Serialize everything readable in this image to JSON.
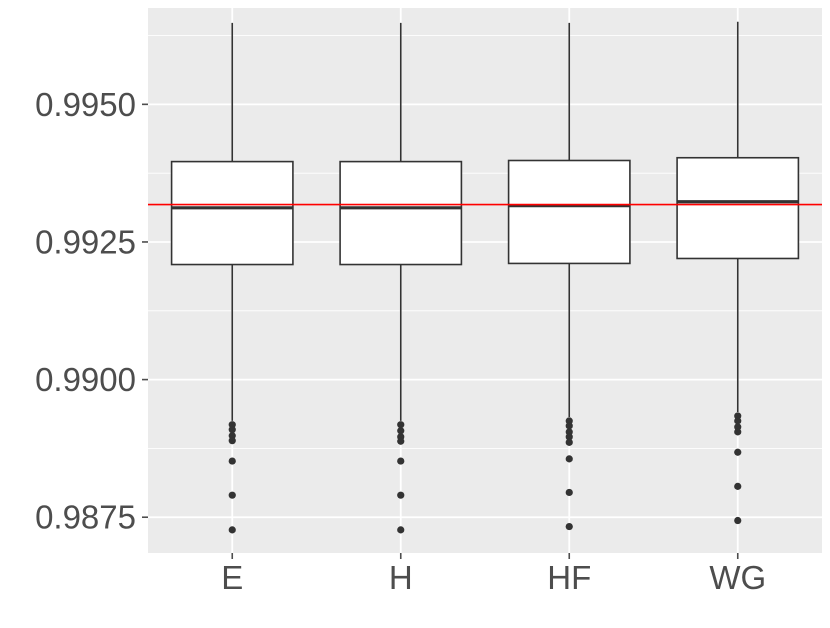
{
  "chart_data": {
    "type": "box",
    "title": "",
    "xlabel": "",
    "ylabel": "",
    "ylim": [
      0.98685,
      0.99675
    ],
    "yticks": [
      0.9875,
      0.99,
      0.9925,
      0.995
    ],
    "ytick_labels": [
      "0.9875",
      "0.9900",
      "0.9925",
      "0.9950"
    ],
    "categories": [
      "E",
      "H",
      "HF",
      "WG"
    ],
    "boxes": [
      {
        "category": "E",
        "whisker_low": 0.98925,
        "q1": 0.99209,
        "median": 0.99312,
        "q3": 0.99396,
        "whisker_high": 0.99648,
        "outliers": [
          0.98918,
          0.98909,
          0.98898,
          0.98889,
          0.98852,
          0.9879,
          0.98727
        ]
      },
      {
        "category": "H",
        "whisker_low": 0.98925,
        "q1": 0.99209,
        "median": 0.99312,
        "q3": 0.99396,
        "whisker_high": 0.99648,
        "outliers": [
          0.98918,
          0.98907,
          0.98896,
          0.98888,
          0.98852,
          0.9879,
          0.98727
        ]
      },
      {
        "category": "HF",
        "whisker_low": 0.98932,
        "q1": 0.99211,
        "median": 0.99316,
        "q3": 0.99398,
        "whisker_high": 0.99648,
        "outliers": [
          0.98925,
          0.98916,
          0.98905,
          0.98896,
          0.98886,
          0.98856,
          0.98795,
          0.98733
        ]
      },
      {
        "category": "WG",
        "whisker_low": 0.98941,
        "q1": 0.9922,
        "median": 0.99323,
        "q3": 0.99403,
        "whisker_high": 0.9965,
        "outliers": [
          0.98934,
          0.98925,
          0.98914,
          0.98905,
          0.98868,
          0.98806,
          0.98744
        ]
      }
    ],
    "reference_line": {
      "y": 0.99318,
      "color": "#ff0000"
    },
    "grid": true,
    "legend": "none",
    "colors": {
      "panel_background": "#ebebeb",
      "grid_line": "#ffffff",
      "box_fill": "#ffffff",
      "box_stroke": "#333333",
      "outlier": "#333333",
      "tick_label": "#4d4d4d"
    }
  }
}
